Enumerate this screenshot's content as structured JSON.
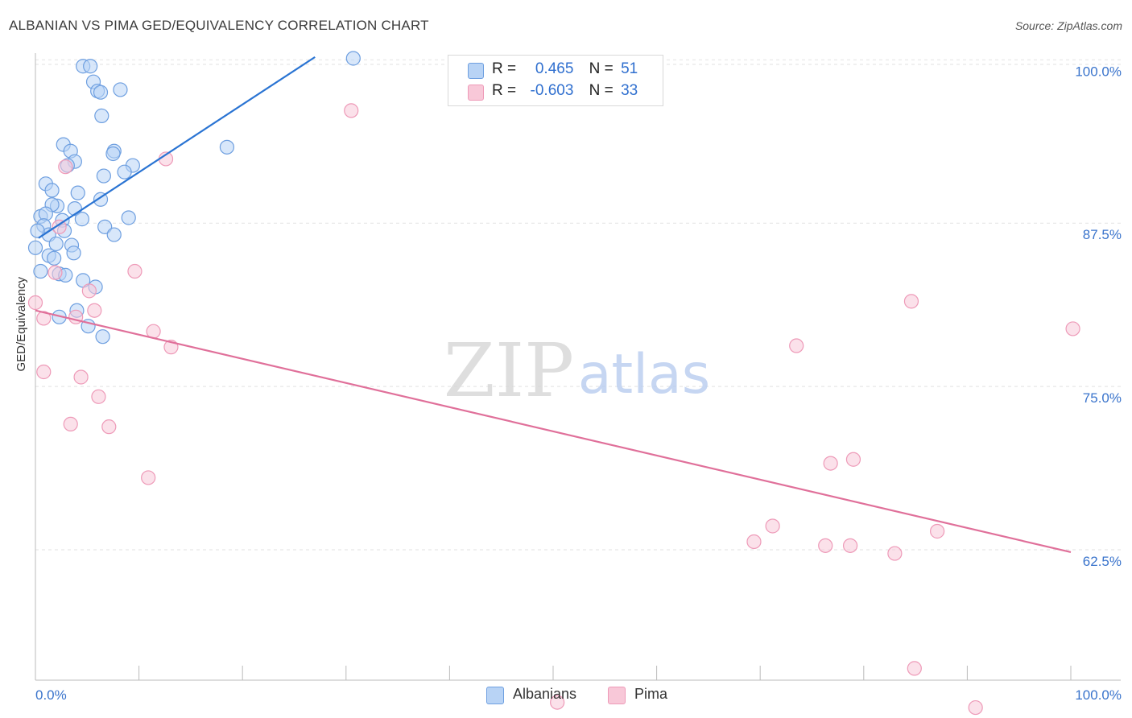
{
  "header": {
    "title": "ALBANIAN VS PIMA GED/EQUIVALENCY CORRELATION CHART",
    "source": "Source: ZipAtlas.com"
  },
  "legend": {
    "r_label": "R =",
    "n_label": "N =",
    "albanians": {
      "r": "0.465",
      "n": "51"
    },
    "pima": {
      "r": "-0.603",
      "n": "33"
    }
  },
  "bottom_legend": {
    "albanians": "Albanians",
    "pima": "Pima"
  },
  "watermark": {
    "zip": "ZIP",
    "atlas": "atlas"
  },
  "colors": {
    "albanians_fill": "#b8d3f5",
    "albanians_stroke": "#6e9fe0",
    "albanians_line": "#2a74d3",
    "pima_fill": "#f8c8d8",
    "pima_stroke": "#ee9ab8",
    "pima_line": "#e0709a",
    "tick_label": "#3a74cc",
    "grid": "#e2e2e2"
  },
  "chart_data": {
    "type": "scatter",
    "title": "ALBANIAN VS PIMA GED/EQUIVALENCY CORRELATION CHART",
    "xlabel": "",
    "ylabel": "GED/Equivalency",
    "xlim": [
      0,
      100
    ],
    "ylim": [
      53.5,
      101.5
    ],
    "x_tick_labels": [
      {
        "value": 0,
        "label": "0.0%"
      },
      {
        "value": 100,
        "label": "100.0%"
      }
    ],
    "y_tick_labels": [
      {
        "value": 100,
        "label": "100.0%"
      },
      {
        "value": 87.5,
        "label": "87.5%"
      },
      {
        "value": 75,
        "label": "75.0%"
      },
      {
        "value": 62.5,
        "label": "62.5%"
      }
    ],
    "grid": true,
    "legend_position": "top-center",
    "series": [
      {
        "name": "Albanians",
        "r": 0.465,
        "n": 51,
        "trendline": {
          "x": [
            0.3,
            27
          ],
          "y": 87.35,
          "y_end": 101.2
        },
        "points": [
          [
            4.6,
            100.5
          ],
          [
            5.3,
            100.5
          ],
          [
            30.7,
            101.1
          ],
          [
            5.6,
            99.3
          ],
          [
            6.0,
            98.6
          ],
          [
            8.2,
            98.7
          ],
          [
            6.3,
            98.5
          ],
          [
            6.4,
            96.7
          ],
          [
            2.7,
            94.5
          ],
          [
            3.4,
            94.0
          ],
          [
            7.6,
            94.0
          ],
          [
            7.5,
            93.8
          ],
          [
            3.8,
            93.2
          ],
          [
            3.1,
            92.9
          ],
          [
            9.4,
            92.9
          ],
          [
            8.6,
            92.4
          ],
          [
            6.6,
            92.1
          ],
          [
            18.5,
            94.3
          ],
          [
            1.0,
            91.5
          ],
          [
            1.6,
            91.0
          ],
          [
            4.1,
            90.8
          ],
          [
            6.3,
            90.3
          ],
          [
            2.1,
            89.8
          ],
          [
            1.6,
            89.9
          ],
          [
            3.8,
            89.6
          ],
          [
            0.5,
            89.0
          ],
          [
            1.0,
            89.2
          ],
          [
            2.6,
            88.7
          ],
          [
            4.5,
            88.8
          ],
          [
            9.0,
            88.9
          ],
          [
            0.8,
            88.3
          ],
          [
            2.8,
            87.9
          ],
          [
            6.7,
            88.2
          ],
          [
            1.3,
            87.6
          ],
          [
            7.6,
            87.6
          ],
          [
            2.0,
            86.9
          ],
          [
            3.5,
            86.8
          ],
          [
            0.0,
            86.6
          ],
          [
            3.7,
            86.2
          ],
          [
            1.3,
            86.0
          ],
          [
            1.8,
            85.8
          ],
          [
            0.5,
            84.8
          ],
          [
            2.3,
            84.6
          ],
          [
            2.9,
            84.5
          ],
          [
            4.6,
            84.1
          ],
          [
            5.8,
            83.6
          ],
          [
            4.0,
            81.8
          ],
          [
            2.3,
            81.3
          ],
          [
            5.1,
            80.6
          ],
          [
            6.5,
            79.8
          ],
          [
            0.2,
            87.9
          ]
        ]
      },
      {
        "name": "Pima",
        "r": -0.603,
        "n": 33,
        "trendline": {
          "x": [
            0,
            100
          ],
          "y": 81.8,
          "y_end": 63.3
        },
        "points": [
          [
            30.5,
            97.1
          ],
          [
            12.6,
            93.4
          ],
          [
            2.9,
            92.8
          ],
          [
            2.3,
            88.2
          ],
          [
            1.9,
            84.7
          ],
          [
            9.6,
            84.8
          ],
          [
            5.2,
            83.3
          ],
          [
            0.0,
            82.4
          ],
          [
            5.7,
            81.8
          ],
          [
            0.8,
            81.2
          ],
          [
            3.9,
            81.3
          ],
          [
            11.4,
            80.2
          ],
          [
            13.1,
            79.0
          ],
          [
            0.8,
            77.1
          ],
          [
            4.4,
            76.7
          ],
          [
            6.1,
            75.2
          ],
          [
            3.4,
            73.1
          ],
          [
            7.1,
            72.9
          ],
          [
            10.9,
            69.0
          ],
          [
            84.6,
            82.5
          ],
          [
            100.2,
            80.4
          ],
          [
            73.5,
            79.1
          ],
          [
            76.8,
            70.1
          ],
          [
            79.0,
            70.4
          ],
          [
            71.2,
            65.3
          ],
          [
            69.4,
            64.1
          ],
          [
            76.3,
            63.8
          ],
          [
            78.7,
            63.8
          ],
          [
            83.0,
            63.2
          ],
          [
            87.1,
            64.9
          ],
          [
            84.9,
            54.4
          ],
          [
            50.4,
            51.8
          ],
          [
            90.8,
            51.4
          ]
        ]
      }
    ]
  }
}
